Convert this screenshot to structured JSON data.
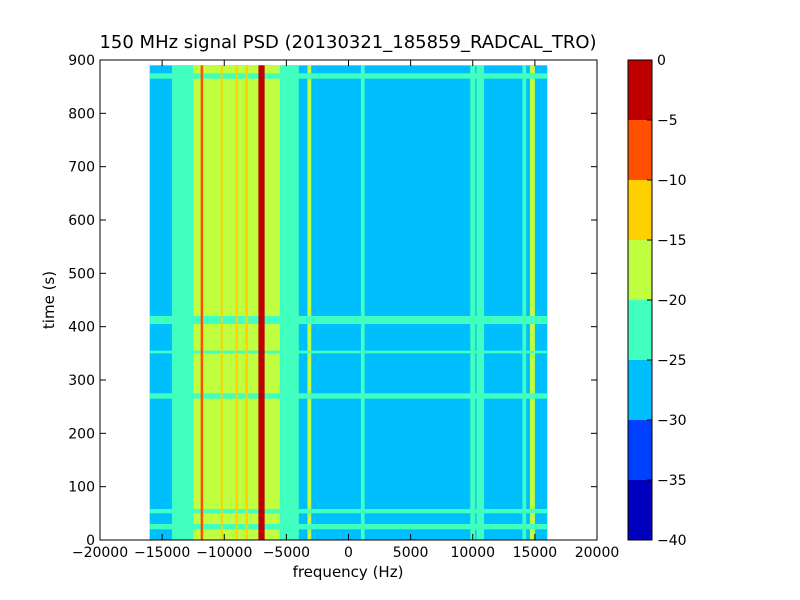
{
  "chart_data": {
    "type": "heatmap",
    "title": "150 MHz signal PSD (20130321_185859_RADCAL_TRO)",
    "xlabel": "frequency (Hz)",
    "ylabel": "time (s)",
    "xlim": [
      -20000,
      20000
    ],
    "ylim": [
      0,
      900
    ],
    "x_ticks": [
      -20000,
      -15000,
      -10000,
      -5000,
      0,
      5000,
      10000,
      15000,
      20000
    ],
    "x_tick_labels": [
      "−20000",
      "−15000",
      "−10000",
      "−5000",
      "0",
      "5000",
      "10000",
      "15000",
      "20000"
    ],
    "y_ticks": [
      0,
      100,
      200,
      300,
      400,
      500,
      600,
      700,
      800,
      900
    ],
    "y_tick_labels": [
      "0",
      "100",
      "200",
      "300",
      "400",
      "500",
      "600",
      "700",
      "800",
      "900"
    ],
    "data_extent": {
      "x": [
        -16000,
        16000
      ],
      "y": [
        0,
        890
      ]
    },
    "background_level": -27.5,
    "colorbar": {
      "min": -40,
      "max": 0,
      "ticks": [
        0,
        -5,
        -10,
        -15,
        -20,
        -25,
        -30,
        -35,
        -40
      ],
      "tick_labels": [
        "0",
        "−5",
        "−10",
        "−15",
        "−20",
        "−25",
        "−30",
        "−35",
        "−40"
      ],
      "bins": [
        {
          "range": [
            -40,
            -35
          ],
          "color": "#0000bf"
        },
        {
          "range": [
            -35,
            -30
          ],
          "color": "#0040ff"
        },
        {
          "range": [
            -30,
            -25
          ],
          "color": "#00bfff"
        },
        {
          "range": [
            -25,
            -20
          ],
          "color": "#40ffbf"
        },
        {
          "range": [
            -20,
            -15
          ],
          "color": "#bfff40"
        },
        {
          "range": [
            -15,
            -10
          ],
          "color": "#ffd000"
        },
        {
          "range": [
            -10,
            -5
          ],
          "color": "#ff5000"
        },
        {
          "range": [
            -5,
            0
          ],
          "color": "#bf0000"
        }
      ]
    },
    "features": {
      "carrier_lines": [
        {
          "x": -7000,
          "width": 500,
          "level": -2.5
        },
        {
          "x": -9000,
          "width": 150,
          "level": -12.5
        },
        {
          "x": -10200,
          "width": 150,
          "level": -12.5
        },
        {
          "x": -11800,
          "width": 200,
          "level": -7.5
        },
        {
          "x": -8200,
          "width": 200,
          "level": -12.5
        }
      ],
      "vertical_bands": [
        {
          "x": [
            -14200,
            -12500
          ],
          "level": -22.5
        },
        {
          "x": [
            -12500,
            -5500
          ],
          "level": -17.5
        },
        {
          "x": [
            -5500,
            -4000
          ],
          "level": -22.5
        },
        {
          "x": [
            -3300,
            -3000
          ],
          "level": -17.5
        },
        {
          "x": [
            1000,
            1300
          ],
          "level": -22.5
        },
        {
          "x": [
            9800,
            10200
          ],
          "level": -22.5
        },
        {
          "x": [
            10300,
            10900
          ],
          "level": -22.5
        },
        {
          "x": [
            14000,
            14300
          ],
          "level": -22.5
        },
        {
          "x": [
            14600,
            15000
          ],
          "level": -17.5
        }
      ],
      "horizontal_bands": [
        {
          "t": [
            865,
            875
          ],
          "level": -22.5
        },
        {
          "t": [
            405,
            420
          ],
          "level": -22.5
        },
        {
          "t": [
            350,
            355
          ],
          "level": -22.5
        },
        {
          "t": [
            265,
            275
          ],
          "level": -22.5
        },
        {
          "t": [
            50,
            58
          ],
          "level": -22.5
        },
        {
          "t": [
            20,
            30
          ],
          "level": -22.5
        }
      ]
    }
  }
}
